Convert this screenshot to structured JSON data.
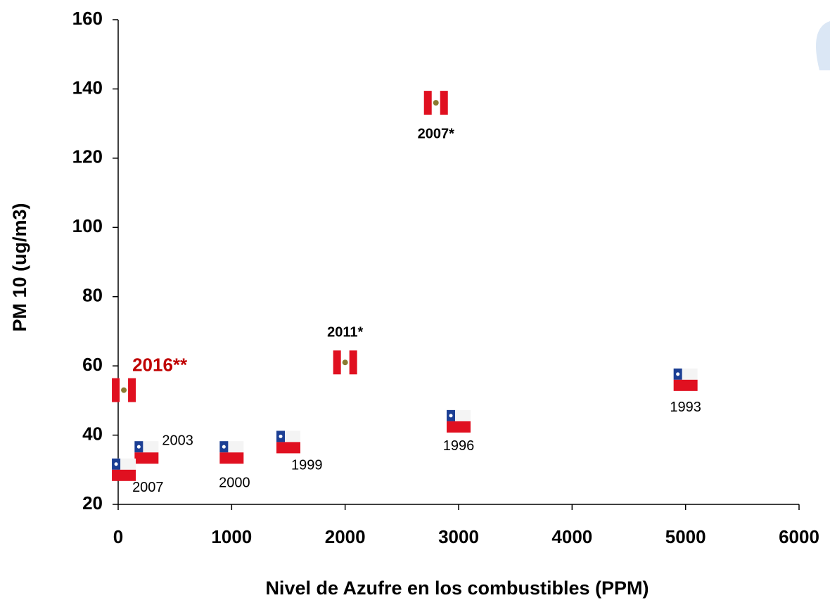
{
  "chart_data": {
    "type": "scatter",
    "xlabel": "Nivel de Azufre en los combustibles (PPM)",
    "ylabel": "PM 10 (ug/m3)",
    "xlim": [
      0,
      6000
    ],
    "xticks": [
      0,
      1000,
      2000,
      3000,
      4000,
      5000,
      6000
    ],
    "ylim": [
      20,
      160
    ],
    "yticks": [
      20,
      40,
      60,
      80,
      100,
      120,
      140,
      160
    ],
    "marker": "flag",
    "points": [
      {
        "x": 2800,
        "y": 136,
        "label": "2007*",
        "flag": "pe",
        "label_color": "#000000",
        "label_bold": true
      },
      {
        "x": 2000,
        "y": 61,
        "label": "2011*",
        "flag": "pe",
        "label_color": "#000000",
        "label_bold": true
      },
      {
        "x": 50,
        "y": 53,
        "label": "2016**",
        "flag": "pe",
        "label_color": "#c00000",
        "label_bold": true
      },
      {
        "x": 5000,
        "y": 56,
        "label": "1993",
        "flag": "cl",
        "label_color": "#000000",
        "label_bold": false
      },
      {
        "x": 3000,
        "y": 44,
        "label": "1996",
        "flag": "cl",
        "label_color": "#000000",
        "label_bold": false
      },
      {
        "x": 1500,
        "y": 38,
        "label": "1999",
        "flag": "cl",
        "label_color": "#000000",
        "label_bold": false
      },
      {
        "x": 1000,
        "y": 35,
        "label": "2000",
        "flag": "cl",
        "label_color": "#000000",
        "label_bold": false
      },
      {
        "x": 250,
        "y": 35,
        "label": "2003",
        "flag": "cl",
        "label_color": "#000000",
        "label_bold": false
      },
      {
        "x": 50,
        "y": 30,
        "label": "2007",
        "flag": "cl",
        "label_color": "#000000",
        "label_bold": false
      }
    ]
  }
}
